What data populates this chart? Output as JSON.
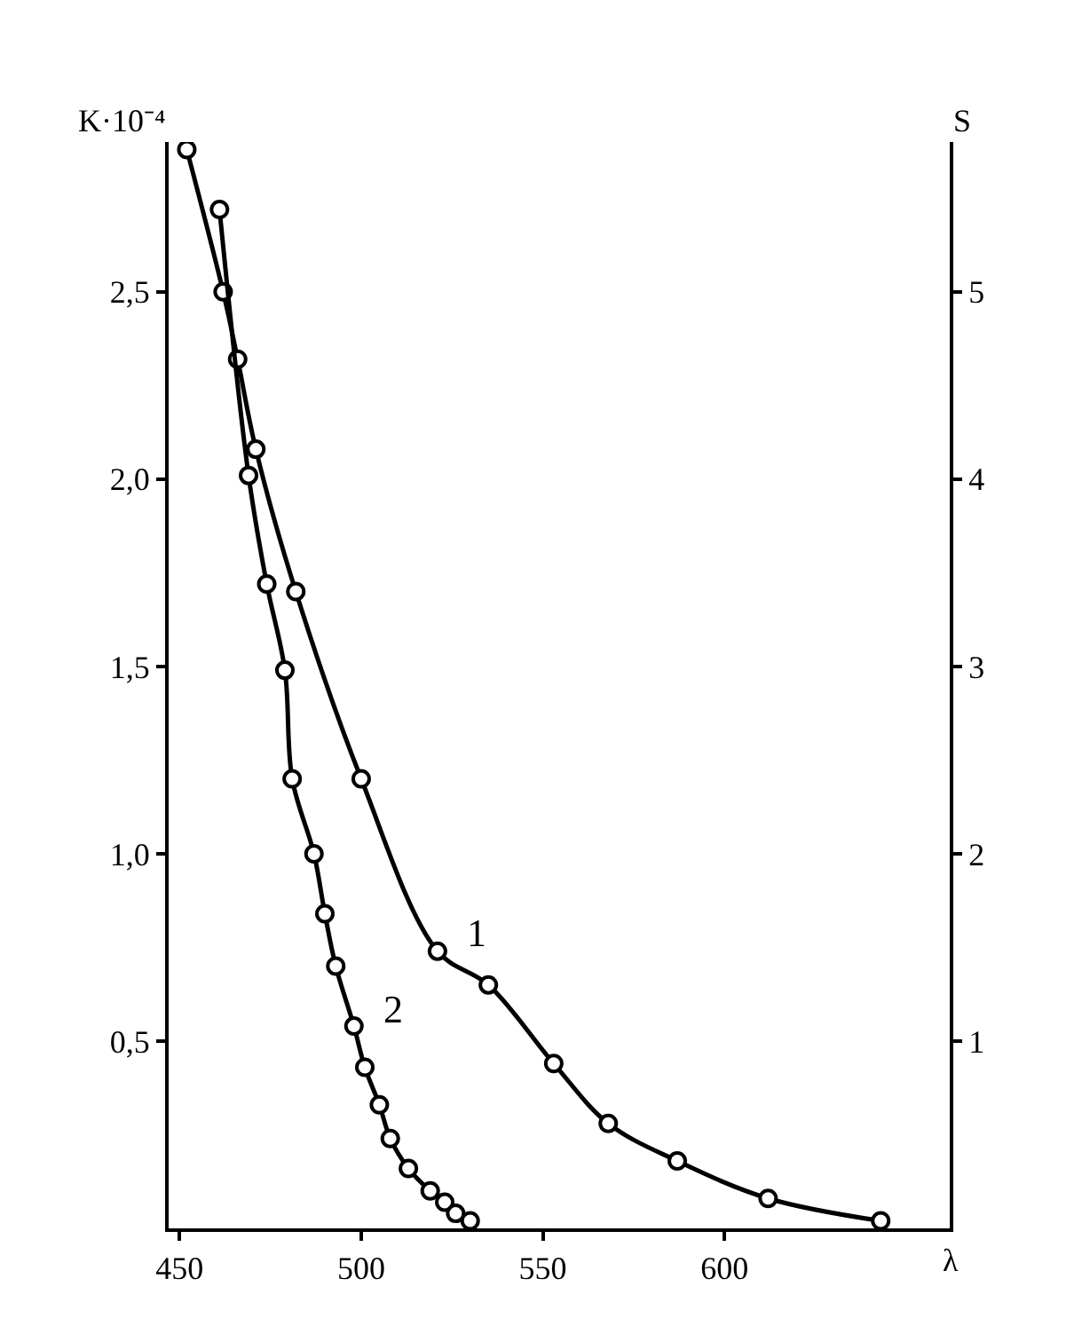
{
  "chart_data": {
    "type": "line",
    "xlabel": "λ",
    "ylabel": "K·10⁻⁴",
    "y2label": "S",
    "xlim": [
      447,
      662
    ],
    "xticks": [
      450,
      500,
      550,
      600
    ],
    "ylim": [
      0,
      2.9
    ],
    "yticks": [
      {
        "value": 0.5,
        "label": "0,5"
      },
      {
        "value": 1.0,
        "label": "1,0"
      },
      {
        "value": 1.5,
        "label": "1,5"
      },
      {
        "value": 2.0,
        "label": "2,0"
      },
      {
        "value": 2.5,
        "label": "2,5"
      }
    ],
    "y2lim": [
      0,
      5.8
    ],
    "y2ticks": [
      1,
      2,
      3,
      4,
      5
    ],
    "marker": "circle",
    "line_style": "solid",
    "series": [
      {
        "name": "1",
        "color": "#000000",
        "x": [
          452,
          462,
          466,
          471,
          482,
          500,
          521,
          535,
          553,
          568,
          587,
          612,
          643
        ],
        "values": [
          2.88,
          2.5,
          2.32,
          2.08,
          1.7,
          1.2,
          0.74,
          0.65,
          0.44,
          0.28,
          0.18,
          0.08,
          0.02
        ]
      },
      {
        "name": "2",
        "color": "#000000",
        "axis": "y2",
        "x": [
          461,
          469,
          474,
          479,
          481,
          487,
          490,
          493,
          498,
          501,
          505,
          508,
          513,
          519,
          523,
          526,
          530
        ],
        "values": [
          5.44,
          4.02,
          3.44,
          2.98,
          2.4,
          2.0,
          1.68,
          1.4,
          1.08,
          0.86,
          0.66,
          0.48,
          0.32,
          0.2,
          0.14,
          0.08,
          0.04
        ]
      }
    ]
  }
}
